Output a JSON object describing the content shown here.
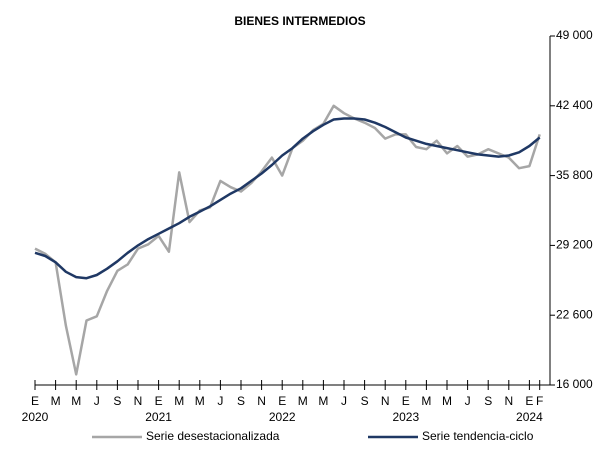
{
  "chart_data": {
    "type": "line",
    "title": "BIENES INTERMEDIOS",
    "categories": [
      "E",
      null,
      "M",
      null,
      "M",
      null,
      "J",
      null,
      "S",
      null,
      "N",
      null,
      "E",
      null,
      "M",
      null,
      "M",
      null,
      "J",
      null,
      "S",
      null,
      "N",
      null,
      "E",
      null,
      "M",
      null,
      "M",
      null,
      "J",
      null,
      "S",
      null,
      "N",
      null,
      "E",
      null,
      "M",
      null,
      "M",
      null,
      "J",
      null,
      "S",
      null,
      "N",
      null,
      "E",
      "F"
    ],
    "year_labels": [
      "2020",
      null,
      null,
      null,
      null,
      null,
      null,
      null,
      null,
      null,
      null,
      null,
      "2021",
      null,
      null,
      null,
      null,
      null,
      null,
      null,
      null,
      null,
      null,
      null,
      "2022",
      null,
      null,
      null,
      null,
      null,
      null,
      null,
      null,
      null,
      null,
      null,
      "2023",
      null,
      null,
      null,
      null,
      null,
      null,
      null,
      null,
      null,
      null,
      null,
      "2024",
      null
    ],
    "series": [
      {
        "name": "Serie desestacionalizada",
        "color": "#a6a6a6",
        "values": [
          28900,
          28400,
          27600,
          21600,
          17000,
          22100,
          22500,
          24900,
          26800,
          27400,
          28900,
          29300,
          30100,
          28600,
          36100,
          31400,
          32500,
          32800,
          35300,
          34700,
          34300,
          35100,
          36200,
          37500,
          35800,
          38400,
          39100,
          40100,
          40700,
          42400,
          41700,
          41200,
          40800,
          40300,
          39300,
          39700,
          39700,
          38500,
          38300,
          39100,
          37900,
          38600,
          37600,
          37800,
          38300,
          37900,
          37500,
          36500,
          36700,
          39700
        ]
      },
      {
        "name": "Serie tendencia-ciclo",
        "color": "#1f3864",
        "values": [
          28500,
          28200,
          27600,
          26700,
          26200,
          26100,
          26400,
          27000,
          27700,
          28500,
          29200,
          29800,
          30300,
          30800,
          31300,
          31900,
          32400,
          32900,
          33500,
          34100,
          34600,
          35300,
          36000,
          36800,
          37700,
          38400,
          39300,
          40000,
          40600,
          41100,
          41200,
          41200,
          41100,
          40800,
          40400,
          39900,
          39400,
          39100,
          38800,
          38600,
          38400,
          38200,
          38000,
          37800,
          37700,
          37600,
          37700,
          38000,
          38600,
          39400
        ]
      }
    ],
    "ylim": [
      16000,
      49000
    ],
    "yticks": [
      {
        "value": 16000,
        "label": "16 000"
      },
      {
        "value": 22600,
        "label": "22 600"
      },
      {
        "value": 29200,
        "label": "29 200"
      },
      {
        "value": 35800,
        "label": "35 800"
      },
      {
        "value": 42400,
        "label": "42 400"
      },
      {
        "value": 49000,
        "label": "49 000"
      }
    ],
    "y_axis_side": "right",
    "legend": "bottom"
  }
}
